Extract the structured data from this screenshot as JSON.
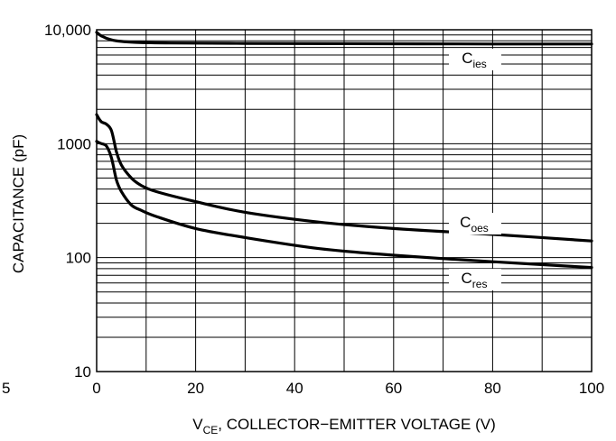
{
  "chart_data": {
    "type": "line",
    "xlabel": "V",
    "xlabel_sub": "CE",
    "xlabel_rest": ", COLLECTOR−EMITTER VOLTAGE (V)",
    "ylabel": "CAPACITANCE (pF)",
    "x_scale": "linear",
    "y_scale": "log",
    "xlim": [
      0,
      100
    ],
    "ylim": [
      10,
      10000
    ],
    "grid": true,
    "x_ticks": [
      0,
      20,
      40,
      60,
      80,
      100
    ],
    "x_tick_labels": [
      "0",
      "20",
      "40",
      "60",
      "80",
      "100"
    ],
    "y_ticks": [
      10,
      100,
      1000,
      10000
    ],
    "y_tick_labels": [
      "10",
      "100",
      "1000",
      "10,000"
    ],
    "stray_tick_label": "5",
    "series": [
      {
        "name": "C",
        "name_sub": "ies",
        "x": [
          0,
          1,
          3,
          5,
          8,
          15,
          30,
          50,
          80,
          100
        ],
        "y": [
          9500,
          8800,
          8150,
          7900,
          7750,
          7650,
          7600,
          7550,
          7500,
          7500
        ]
      },
      {
        "name": "C",
        "name_sub": "oes",
        "x": [
          0,
          0.5,
          1,
          2,
          3,
          4,
          5,
          7,
          9,
          12,
          20,
          30,
          45,
          60,
          80,
          100
        ],
        "y": [
          1800,
          1650,
          1550,
          1480,
          1300,
          850,
          650,
          500,
          430,
          380,
          310,
          250,
          205,
          180,
          160,
          140
        ]
      },
      {
        "name": "C",
        "name_sub": "res",
        "x": [
          0,
          0.5,
          1,
          2,
          3,
          4,
          5,
          7,
          9,
          12,
          20,
          30,
          45,
          60,
          80,
          100
        ],
        "y": [
          1050,
          1020,
          1000,
          950,
          750,
          480,
          380,
          290,
          260,
          230,
          180,
          150,
          120,
          105,
          92,
          82
        ]
      }
    ]
  }
}
